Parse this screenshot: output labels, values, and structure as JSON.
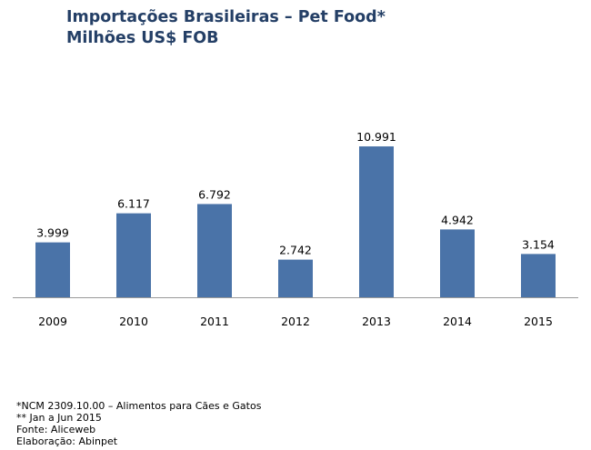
{
  "title": "Importações Brasileiras – Pet Food*",
  "subtitle": "Milhões US$ FOB",
  "colors": {
    "bar": "#4A73A8",
    "title": "#243F66"
  },
  "chart_data": {
    "type": "bar",
    "title": "Importações Brasileiras – Pet Food*",
    "subtitle": "Milhões US$ FOB",
    "categories": [
      "2009",
      "2010",
      "2011",
      "2012",
      "2013",
      "2014",
      "2015"
    ],
    "values": [
      3.999,
      6.117,
      6.792,
      2.742,
      10.991,
      4.942,
      3.154
    ],
    "value_labels": [
      "3.999",
      "6.117",
      "6.792",
      "2.742",
      "10.991",
      "4.942",
      "3.154"
    ],
    "xlabel": "",
    "ylabel": "",
    "ylim": [
      0,
      11
    ],
    "grid": false,
    "legend": "none"
  },
  "notes": [
    "*NCM 2309.10.00 – Alimentos para Cães e Gatos",
    "** Jan a Jun 2015",
    "Fonte: Aliceweb",
    "Elaboração:  Abinpet"
  ]
}
